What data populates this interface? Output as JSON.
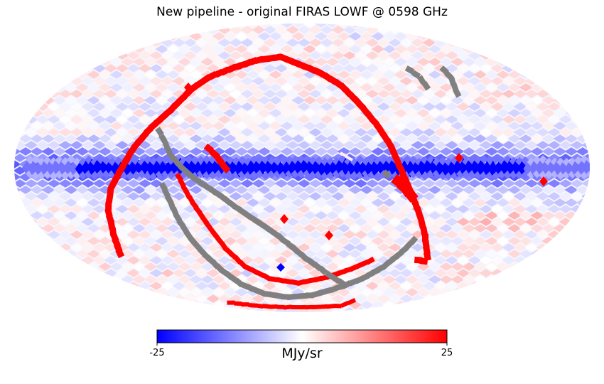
{
  "chart_data": {
    "type": "heatmap",
    "projection": "mollweide",
    "title": "New pipeline - original FIRAS LOWF @ 0598 GHz",
    "colorbar": {
      "vmin": -25,
      "vmax": 25,
      "min_label": "-25",
      "max_label": "25",
      "unit": "MJy/sr",
      "colormap": [
        "#0000ff",
        "#ffffff",
        "#ff0000"
      ],
      "masked_color": "#808080"
    },
    "features": [
      {
        "name": "galactic-plane-band",
        "description": "strong negative residual along the equator",
        "value": -25
      },
      {
        "name": "scan-ring-west",
        "value": 25
      },
      {
        "name": "scan-ring-north",
        "value": 25
      },
      {
        "name": "scan-ring-east",
        "value": 25
      },
      {
        "name": "scan-ring-south",
        "value": 25
      },
      {
        "name": "masked-diagonal-stripe",
        "value": null
      },
      {
        "name": "masked-southern-arc",
        "value": null
      },
      {
        "name": "masked-northeast-strip",
        "value": null
      }
    ]
  }
}
